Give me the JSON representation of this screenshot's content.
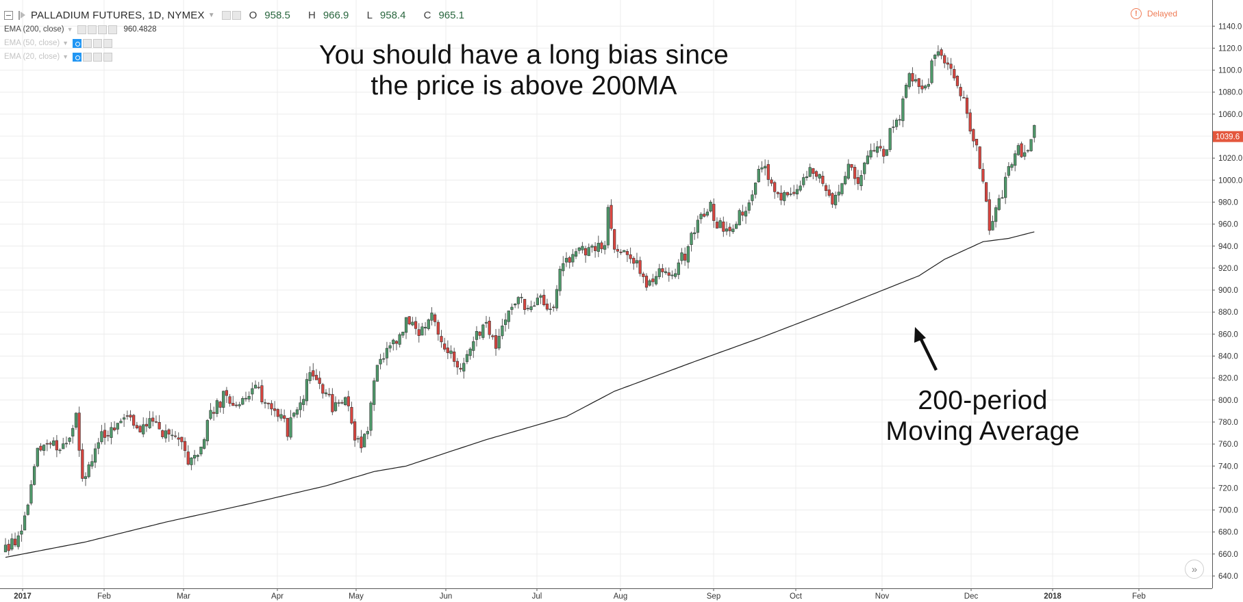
{
  "header": {
    "symbol": "PALLADIUM FUTURES, 1D, NYMEX",
    "open_label": "O",
    "open": "958.5",
    "high_label": "H",
    "high": "966.9",
    "low_label": "L",
    "low": "958.4",
    "close_label": "C",
    "close": "965.1",
    "delayed": "Delayed",
    "delayed_icon": "exclamation-circle-icon"
  },
  "studies": [
    {
      "name": "EMA (200, close)",
      "value": "960.4828"
    },
    {
      "name": "EMA (50, close)",
      "value": ""
    },
    {
      "name": "EMA (20, close)",
      "value": ""
    }
  ],
  "annotations": {
    "bias_line1": "You should have a long bias since",
    "bias_line2": "the price is above 200MA",
    "ma_line1": "200-period",
    "ma_line2": "Moving Average"
  },
  "colors": {
    "up": "#4f9a6b",
    "down": "#d9453f",
    "grid": "#ececec",
    "ma": "#1a1a1a",
    "price_tag": "#e4573d"
  },
  "chart_data": {
    "type": "candlestick",
    "ylim": [
      630,
      1145
    ],
    "yticks": [
      640,
      660,
      680,
      700,
      720,
      740,
      760,
      780,
      800,
      820,
      840,
      860,
      880,
      900,
      920,
      940,
      960,
      980,
      1000,
      1020,
      1040,
      1060,
      1080,
      1100,
      1120,
      1140
    ],
    "ytick_labels": [
      "640.0",
      "660.0",
      "680.0",
      "700.0",
      "720.0",
      "740.0",
      "760.0",
      "780.0",
      "800.0",
      "820.0",
      "840.0",
      "860.0",
      "880.0",
      "900.0",
      "920.0",
      "940.0",
      "960.0",
      "980.0",
      "1000.0",
      "1020.0",
      "1040.0",
      "1060.0",
      "1080.0",
      "1100.0",
      "1120.0",
      "1140.0"
    ],
    "x_labels": [
      "2017",
      "Feb",
      "Mar",
      "Apr",
      "May",
      "Jun",
      "Jul",
      "Aug",
      "Sep",
      "Oct",
      "Nov",
      "Dec",
      "2018",
      "Feb"
    ],
    "x_bold": [
      "2017",
      "2018"
    ],
    "last_price": "1039.6",
    "last_price_value": 1039.6,
    "ma_name": "EMA (200, close)",
    "price_keypoints": [
      [
        0,
        665
      ],
      [
        5,
        675
      ],
      [
        10,
        758
      ],
      [
        14,
        765
      ],
      [
        17,
        752
      ],
      [
        20,
        760
      ],
      [
        22,
        790
      ],
      [
        24,
        725
      ],
      [
        26,
        740
      ],
      [
        30,
        772
      ],
      [
        34,
        770
      ],
      [
        38,
        785
      ],
      [
        42,
        772
      ],
      [
        46,
        780
      ],
      [
        50,
        768
      ],
      [
        54,
        762
      ],
      [
        57,
        745
      ],
      [
        60,
        752
      ],
      [
        64,
        785
      ],
      [
        68,
        803
      ],
      [
        70,
        798
      ],
      [
        74,
        798
      ],
      [
        78,
        808
      ],
      [
        82,
        800
      ],
      [
        85,
        790
      ],
      [
        88,
        772
      ],
      [
        91,
        790
      ],
      [
        94,
        815
      ],
      [
        96,
        825
      ],
      [
        99,
        808
      ],
      [
        102,
        795
      ],
      [
        104,
        800
      ],
      [
        107,
        795
      ],
      [
        109,
        765
      ],
      [
        111,
        762
      ],
      [
        113,
        768
      ],
      [
        115,
        820
      ],
      [
        118,
        838
      ],
      [
        121,
        855
      ],
      [
        123,
        855
      ],
      [
        125,
        875
      ],
      [
        128,
        860
      ],
      [
        131,
        870
      ],
      [
        133,
        878
      ],
      [
        136,
        852
      ],
      [
        139,
        840
      ],
      [
        142,
        832
      ],
      [
        144,
        838
      ],
      [
        147,
        862
      ],
      [
        150,
        868
      ],
      [
        153,
        845
      ],
      [
        155,
        862
      ],
      [
        157,
        882
      ],
      [
        160,
        893
      ],
      [
        163,
        878
      ],
      [
        166,
        890
      ],
      [
        169,
        888
      ],
      [
        171,
        885
      ],
      [
        173,
        920
      ],
      [
        176,
        930
      ],
      [
        179,
        935
      ],
      [
        182,
        935
      ],
      [
        185,
        945
      ],
      [
        187,
        940
      ],
      [
        188,
        978
      ],
      [
        190,
        940
      ],
      [
        192,
        935
      ],
      [
        195,
        928
      ],
      [
        198,
        918
      ],
      [
        200,
        908
      ],
      [
        203,
        912
      ],
      [
        206,
        920
      ],
      [
        208,
        915
      ],
      [
        211,
        928
      ],
      [
        213,
        938
      ],
      [
        216,
        962
      ],
      [
        218,
        968
      ],
      [
        220,
        978
      ],
      [
        222,
        960
      ],
      [
        224,
        955
      ],
      [
        227,
        960
      ],
      [
        229,
        968
      ],
      [
        232,
        982
      ],
      [
        234,
        1000
      ],
      [
        236,
        1012
      ],
      [
        238,
        1002
      ],
      [
        241,
        990
      ],
      [
        243,
        985
      ],
      [
        246,
        990
      ],
      [
        249,
        998
      ],
      [
        251,
        1015
      ],
      [
        253,
        1008
      ],
      [
        256,
        988
      ],
      [
        258,
        982
      ],
      [
        261,
        998
      ],
      [
        263,
        1012
      ],
      [
        266,
        1002
      ],
      [
        269,
        1020
      ],
      [
        272,
        1025
      ],
      [
        274,
        1022
      ],
      [
        277,
        1052
      ],
      [
        279,
        1060
      ],
      [
        281,
        1090
      ],
      [
        283,
        1095
      ],
      [
        285,
        1085
      ],
      [
        287,
        1080
      ],
      [
        290,
        1118
      ],
      [
        293,
        1108
      ],
      [
        296,
        1090
      ],
      [
        299,
        1070
      ],
      [
        301,
        1045
      ],
      [
        303,
        1030
      ],
      [
        305,
        1000
      ],
      [
        306,
        975
      ],
      [
        307,
        960
      ],
      [
        309,
        970
      ],
      [
        312,
        1000
      ],
      [
        314,
        1020
      ],
      [
        316,
        1030
      ],
      [
        318,
        1022
      ],
      [
        320,
        1042
      ],
      [
        321,
        1055
      ]
    ],
    "ma_keypoints": [
      [
        0,
        657
      ],
      [
        25,
        671
      ],
      [
        50,
        689
      ],
      [
        75,
        705
      ],
      [
        100,
        722
      ],
      [
        115,
        735
      ],
      [
        125,
        740
      ],
      [
        150,
        764
      ],
      [
        175,
        785
      ],
      [
        190,
        808
      ],
      [
        215,
        835
      ],
      [
        235,
        856
      ],
      [
        260,
        884
      ],
      [
        285,
        913
      ],
      [
        293,
        928
      ],
      [
        305,
        944
      ],
      [
        313,
        947
      ],
      [
        321,
        953
      ]
    ]
  }
}
